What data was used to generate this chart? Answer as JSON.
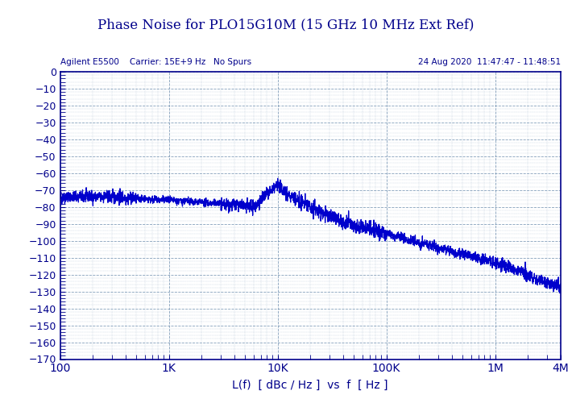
{
  "title": "Phase Noise for PLO15G10M (15 GHz 10 MHz Ext Ref)",
  "subtitle_left": "Agilent E5500    Carrier: 15E+9 Hz   No Spurs",
  "subtitle_right": "24 Aug 2020  11:47:47 - 11:48:51",
  "xlabel": "L(f)  [ dBc / Hz ]  vs  f  [ Hz ]",
  "title_color": "#00008B",
  "line_color": "#0000cc",
  "bg_color": "#ffffff",
  "grid_color": "#6688aa",
  "xmin": 100,
  "xmax": 4000000,
  "ymin": -170,
  "ymax": 0,
  "yticks": [
    0,
    -10,
    -20,
    -30,
    -40,
    -50,
    -60,
    -70,
    -80,
    -90,
    -100,
    -110,
    -120,
    -130,
    -140,
    -150,
    -160,
    -170
  ],
  "xtick_labels": [
    "100",
    "1K",
    "10K",
    "100K",
    "1M",
    "4M"
  ],
  "xtick_positions": [
    100,
    1000,
    10000,
    100000,
    1000000,
    4000000
  ]
}
